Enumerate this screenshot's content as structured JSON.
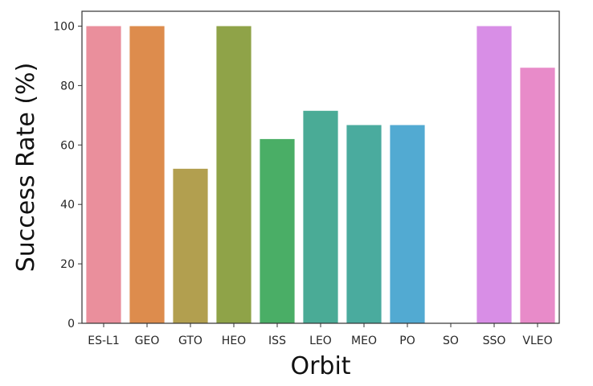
{
  "chart_data": {
    "type": "bar",
    "title": "",
    "xlabel": "Orbit",
    "ylabel": "Success Rate (%)",
    "categories": [
      "ES-L1",
      "GEO",
      "GTO",
      "HEO",
      "ISS",
      "LEO",
      "MEO",
      "PO",
      "SO",
      "SSO",
      "VLEO"
    ],
    "values": [
      100,
      100,
      52,
      100,
      62,
      71.5,
      66.7,
      66.7,
      0,
      100,
      86
    ],
    "colors": [
      "#ea8f9c",
      "#dd8c4d",
      "#b29f4f",
      "#8fa348",
      "#4aae66",
      "#4aab96",
      "#4aab9e",
      "#52aad2",
      "#b7a4e7",
      "#d88ee6",
      "#e88bc9"
    ],
    "ylim": [
      0,
      105
    ],
    "yticks": [
      0,
      20,
      40,
      60,
      80,
      100
    ],
    "grid": false,
    "legend": "none"
  }
}
